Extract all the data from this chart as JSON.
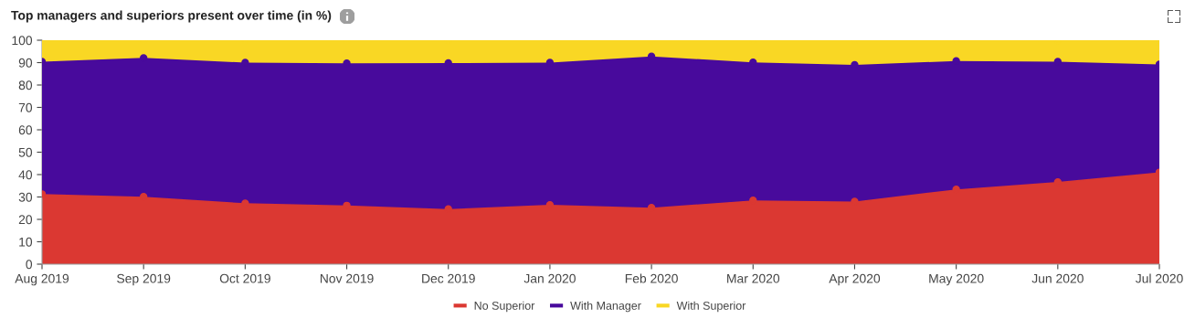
{
  "chart_data": {
    "type": "area",
    "stacked": true,
    "title": "Top managers and superiors present over time (in %)",
    "categories": [
      "Aug 2019",
      "Sep 2019",
      "Oct 2019",
      "Nov 2019",
      "Dec 2019",
      "Jan 2020",
      "Feb 2020",
      "Mar 2020",
      "Apr 2020",
      "May 2020",
      "Jun 2020",
      "Jul 2020"
    ],
    "series": [
      {
        "name": "No Superior",
        "color": "#db3832",
        "values": [
          31.3,
          30.1,
          27.2,
          26.2,
          24.6,
          26.5,
          25.2,
          28.5,
          28.0,
          33.4,
          36.7,
          41.0
        ]
      },
      {
        "name": "With Manager",
        "color": "#480a9c",
        "values": [
          59.1,
          62.0,
          62.8,
          63.5,
          65.2,
          63.5,
          67.6,
          61.6,
          61.0,
          57.3,
          53.7,
          48.2
        ]
      },
      {
        "name": "With Superior",
        "color": "#f9d724",
        "values": [
          9.6,
          7.9,
          10.0,
          10.3,
          10.2,
          10.0,
          7.2,
          9.9,
          11.0,
          9.3,
          9.6,
          10.8
        ]
      }
    ],
    "ylim": [
      0,
      100
    ],
    "yticks": [
      0,
      10,
      20,
      30,
      40,
      50,
      60,
      70,
      80,
      90,
      100
    ],
    "legend": "bottom",
    "marker": "circle"
  }
}
